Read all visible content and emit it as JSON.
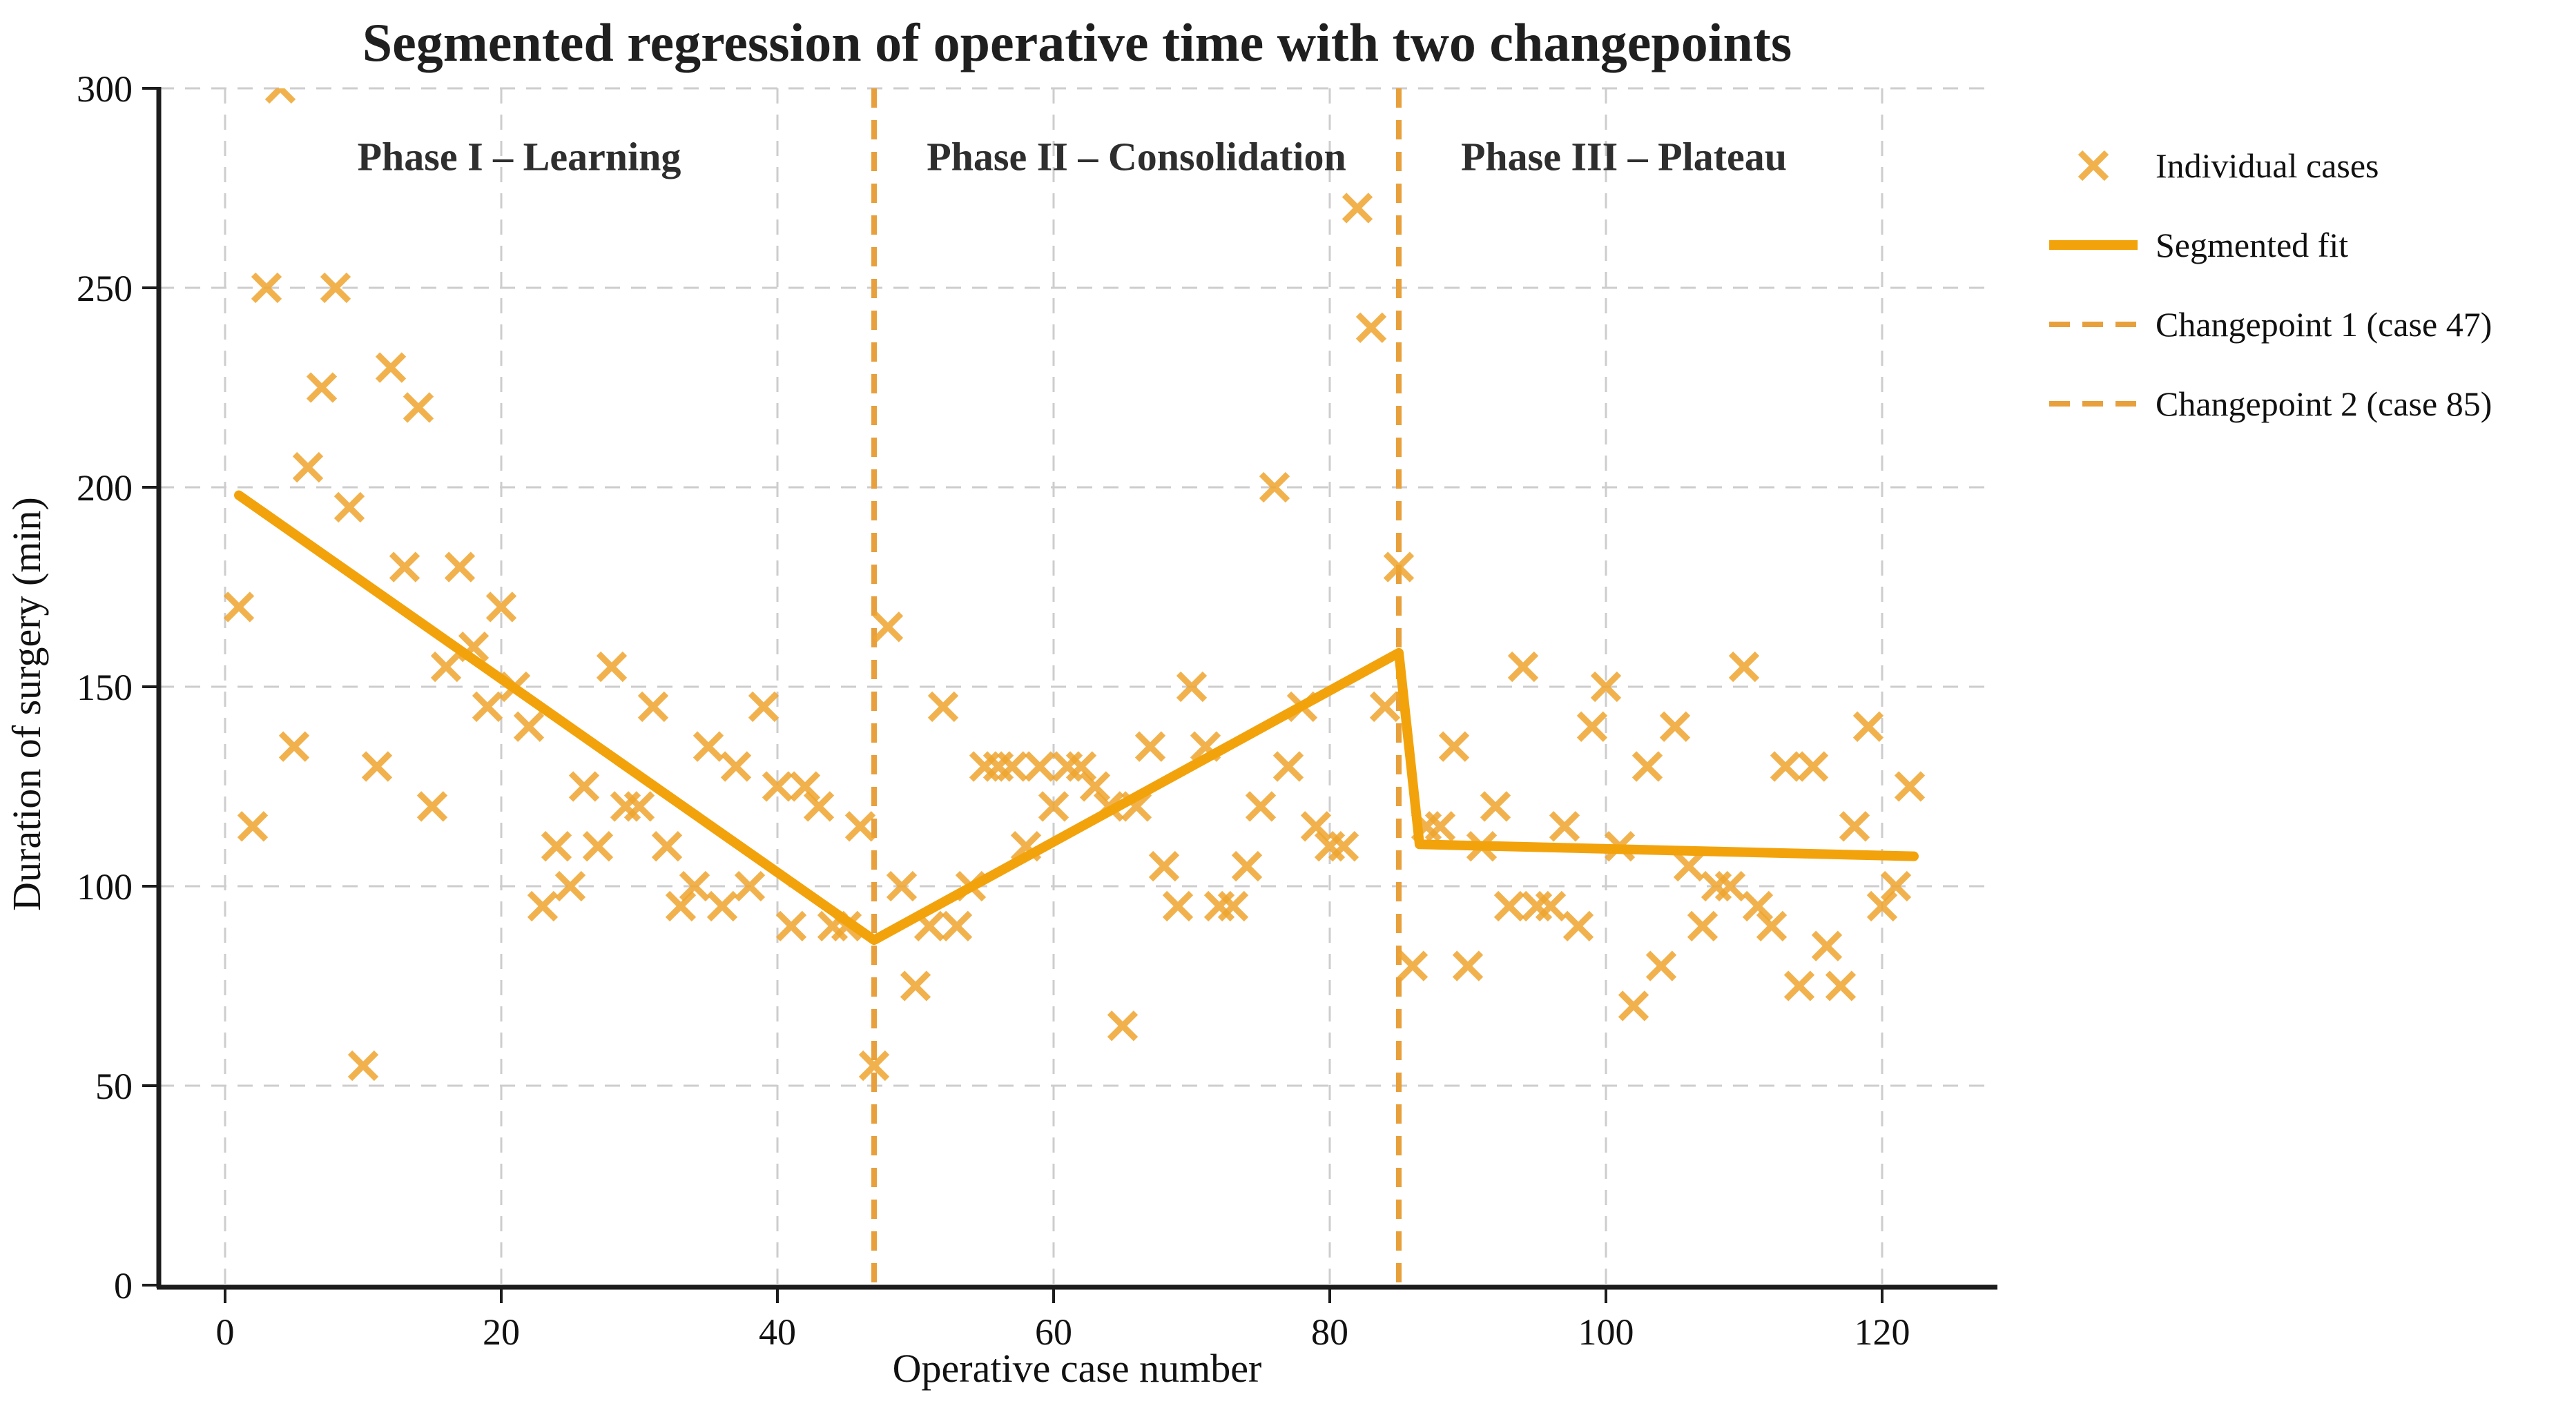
{
  "figure": {
    "background": "#ffffff"
  },
  "chart_data": {
    "type": "scatter",
    "title": "Segmented regression of operative time with two changepoints",
    "xlabel": "Operative case number",
    "ylabel": "Duration of surgery (min)",
    "xlim": [
      -4.8,
      128.2
    ],
    "ylim": [
      0,
      300
    ],
    "x_ticks": [
      0,
      20,
      40,
      60,
      80,
      100,
      120
    ],
    "y_ticks": [
      0,
      50,
      100,
      150,
      200,
      250,
      300
    ],
    "grid": true,
    "grid_color": "#cdcdcd",
    "axis_color": "#1c1c1c",
    "text_color": "#1a1a1a",
    "phase_label_color": "#2e2e2e",
    "changepoint_color": "#e7a03c",
    "phase_labels": [
      {
        "text": "Phase I – Learning",
        "x": 21.3,
        "y": 283
      },
      {
        "text": "Phase II – Consolidation",
        "x": 66.0,
        "y": 283
      },
      {
        "text": "Phase III – Plateau",
        "x": 101.3,
        "y": 283
      }
    ],
    "scatter": {
      "name": "Individual cases",
      "marker": "x",
      "color": "#eea42f",
      "opacity": 0.85,
      "x": [
        1,
        2,
        3,
        4,
        5,
        6,
        7,
        8,
        9,
        10,
        11,
        12,
        13,
        14,
        15,
        16,
        17,
        18,
        19,
        20,
        21,
        22,
        23,
        24,
        25,
        26,
        27,
        28,
        29,
        30,
        31,
        32,
        33,
        34,
        35,
        36,
        37,
        38,
        39,
        40,
        41,
        42,
        43,
        44,
        45,
        46,
        47,
        48,
        49,
        50,
        51,
        52,
        53,
        54,
        55,
        56,
        57,
        58,
        59,
        60,
        61,
        62,
        63,
        64,
        65,
        66,
        67,
        68,
        69,
        70,
        71,
        72,
        73,
        74,
        75,
        76,
        77,
        78,
        79,
        80,
        81,
        82,
        83,
        84,
        85,
        86,
        87,
        88,
        89,
        90,
        91,
        92,
        93,
        94,
        95,
        96,
        97,
        98,
        99,
        100,
        101,
        102,
        103,
        104,
        105,
        106,
        107,
        108,
        109,
        110,
        111,
        112,
        113,
        114,
        115,
        116,
        117,
        118,
        119,
        120,
        121,
        122
      ],
      "y": [
        170,
        115,
        250,
        300,
        135,
        205,
        225,
        250,
        195,
        55,
        130,
        230,
        180,
        220,
        120,
        155,
        180,
        160,
        145,
        170,
        150,
        140,
        95,
        110,
        100,
        125,
        110,
        155,
        120,
        120,
        145,
        110,
        95,
        100,
        135,
        95,
        130,
        100,
        145,
        125,
        90,
        125,
        120,
        90,
        90,
        115,
        55,
        165,
        100,
        75,
        90,
        145,
        90,
        100,
        130,
        130,
        130,
        110,
        130,
        120,
        130,
        130,
        125,
        120,
        65,
        120,
        135,
        105,
        95,
        150,
        135,
        95,
        95,
        105,
        120,
        200,
        130,
        145,
        115,
        110,
        110,
        270,
        240,
        145,
        180,
        80,
        115,
        115,
        135,
        80,
        110,
        120,
        95,
        155,
        95,
        95,
        115,
        90,
        140,
        150,
        110,
        70,
        130,
        80,
        140,
        105,
        90,
        100,
        100,
        155,
        95,
        90,
        130,
        75,
        130,
        85,
        75,
        115,
        140,
        95,
        100,
        125
      ]
    },
    "fit": {
      "name": "Segmented fit",
      "color": "#f2a30b",
      "width": 14,
      "points": [
        [
          1,
          198
        ],
        [
          47,
          86.5
        ],
        [
          85,
          158.5
        ],
        [
          86.5,
          110.5
        ],
        [
          122.3,
          107.5
        ]
      ]
    },
    "changepoints": [
      {
        "name": "Changepoint 1 (case 47)",
        "x": 47
      },
      {
        "name": "Changepoint 2 (case 85)",
        "x": 85
      }
    ],
    "legend": {
      "items": [
        {
          "label": "Individual cases",
          "swatch": "x-marker"
        },
        {
          "label": "Segmented fit",
          "swatch": "solid-line"
        },
        {
          "label": "Changepoint 1 (case 47)",
          "swatch": "dashed-line"
        },
        {
          "label": "Changepoint 2 (case 85)",
          "swatch": "dashed-line"
        }
      ]
    }
  }
}
